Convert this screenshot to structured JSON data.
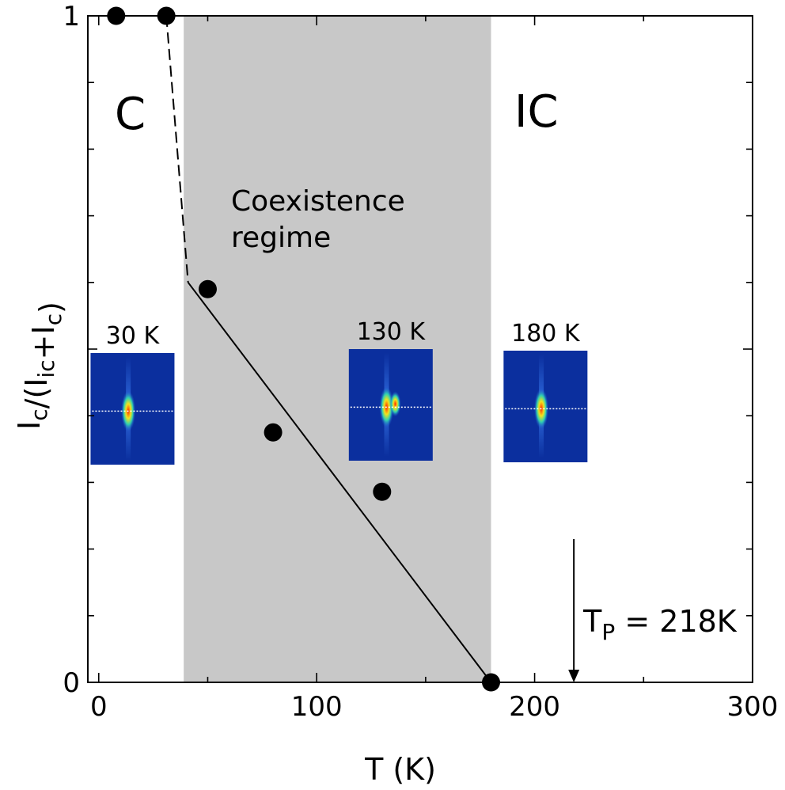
{
  "chart_data": {
    "type": "scatter",
    "xlabel": "T  (K)",
    "ylabel_main": "I",
    "ylabel_parts": [
      {
        "t": "I",
        "sub": false
      },
      {
        "t": "c",
        "sub": true
      },
      {
        "t": "/(I",
        "sub": false
      },
      {
        "t": "ic",
        "sub": true
      },
      {
        "t": "+I",
        "sub": false
      },
      {
        "t": "c",
        "sub": true
      },
      {
        "t": ")",
        "sub": false
      }
    ],
    "xlim": [
      -5,
      300
    ],
    "ylim": [
      0,
      1
    ],
    "x_ticks": [
      0,
      100,
      200,
      300
    ],
    "x_tick_labels": [
      "0",
      "100",
      "200",
      "300"
    ],
    "y_ticks": [
      0,
      1
    ],
    "y_tick_labels": [
      "0",
      "1"
    ],
    "points": [
      {
        "x": 8,
        "y": 1.0
      },
      {
        "x": 31,
        "y": 1.0
      },
      {
        "x": 50,
        "y": 0.59
      },
      {
        "x": 80,
        "y": 0.375
      },
      {
        "x": 130,
        "y": 0.286
      },
      {
        "x": 180,
        "y": 0.0
      }
    ],
    "dashed_line": [
      [
        31,
        1.0
      ],
      [
        41,
        0.6
      ]
    ],
    "solid_line": [
      [
        41,
        0.6
      ],
      [
        180,
        0.0
      ]
    ],
    "shaded_region": {
      "x_from": 39,
      "x_to": 180,
      "color": "#c8c8c8"
    },
    "region_labels": {
      "commensurate": "C",
      "incommensurate": "IC",
      "coexistence_line1": "Coexistence",
      "coexistence_line2": "regime"
    },
    "insets": [
      {
        "label": "30 K",
        "x_center": 15.5,
        "peaks": 1
      },
      {
        "label": "130 K",
        "x_center": 134,
        "peaks": 2
      },
      {
        "label": "180 K",
        "x_center": 205,
        "peaks": 1
      }
    ],
    "annotation": {
      "text_main": "T",
      "text_sub": "P",
      "text_rest": " = 218K",
      "arrow_x": 218,
      "arrow_y_from": 0.215,
      "arrow_y_to": 0.0
    },
    "colors": {
      "shade": "#c8c8c8",
      "marker": "#000000",
      "inset_bg": "#0b2f9e",
      "inset_dotted": "#ffffff"
    }
  }
}
